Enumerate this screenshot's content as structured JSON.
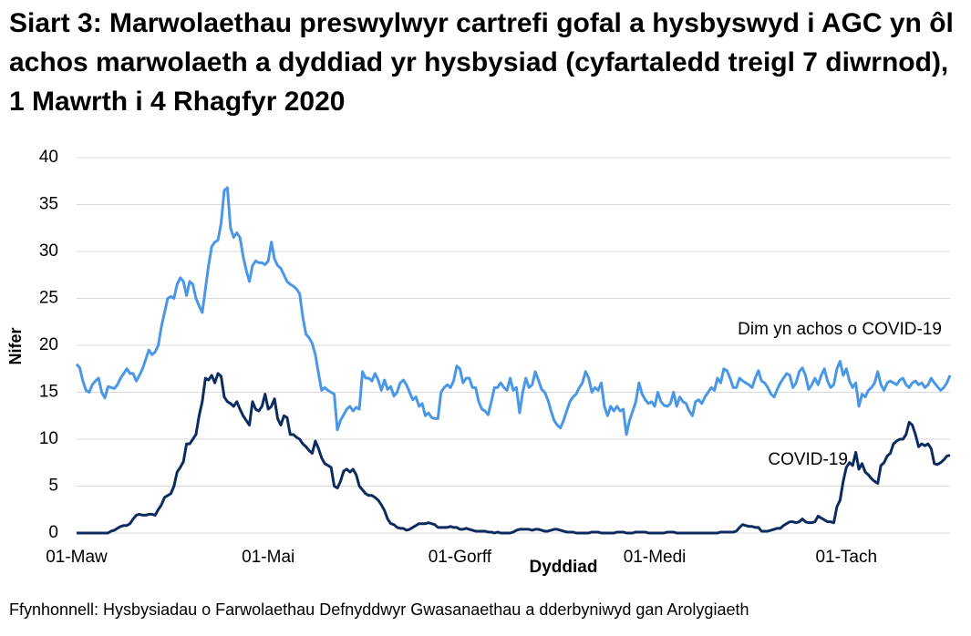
{
  "chart_data": {
    "type": "line",
    "title": "Siart 3: Marwolaethau preswylwyr cartrefi gofal a hysbyswyd i AGC yn ôl achos marwolaeth a dyddiad yr hysbysiad (cyfartaledd treigl 7 diwrnod), 1 Mawrth i 4 Rhagfyr 2020",
    "x_label": "Dyddiad",
    "y_label": "Nifer",
    "source": "Ffynhonnell: Hysbysiadau o Farwolaethau Defnyddwyr Gwasanaethau a dderbyniwyd gan Arolygiaeth",
    "categories": [
      "01-Maw",
      null,
      null,
      null,
      null,
      null,
      null,
      null,
      null,
      null,
      null,
      null,
      null,
      null,
      null,
      null,
      null,
      null,
      null,
      null,
      null,
      null,
      null,
      null,
      null,
      null,
      null,
      null,
      null,
      null,
      null,
      null,
      null,
      null,
      null,
      null,
      null,
      null,
      null,
      null,
      null,
      null,
      null,
      null,
      null,
      null,
      null,
      null,
      null,
      null,
      null,
      null,
      null,
      null,
      null,
      null,
      null,
      null,
      null,
      null,
      null,
      "01-Mai",
      null,
      null,
      null,
      null,
      null,
      null,
      null,
      null,
      null,
      null,
      null,
      null,
      null,
      null,
      null,
      null,
      null,
      null,
      null,
      null,
      null,
      null,
      null,
      null,
      null,
      null,
      null,
      null,
      null,
      null,
      null,
      null,
      null,
      null,
      null,
      null,
      null,
      null,
      null,
      null,
      null,
      null,
      null,
      null,
      null,
      null,
      null,
      null,
      null,
      null,
      null,
      null,
      null,
      null,
      null,
      null,
      null,
      null,
      null,
      null,
      "01-Gorff",
      null,
      null,
      null,
      null,
      null,
      null,
      null,
      null,
      null,
      null,
      null,
      null,
      null,
      null,
      null,
      null,
      null,
      null,
      null,
      null,
      null,
      null,
      null,
      null,
      null,
      null,
      null,
      null,
      null,
      null,
      null,
      null,
      null,
      null,
      null,
      null,
      null,
      null,
      null,
      null,
      null,
      null,
      null,
      null,
      null,
      null,
      null,
      null,
      null,
      null,
      null,
      null,
      null,
      null,
      null,
      null,
      null,
      null,
      null,
      null,
      null,
      "01-Medi",
      null,
      null,
      null,
      null,
      null,
      null,
      null,
      null,
      null,
      null,
      null,
      null,
      null,
      null,
      null,
      null,
      null,
      null,
      null,
      null,
      null,
      null,
      null,
      null,
      null,
      null,
      null,
      null,
      null,
      null,
      null,
      null,
      null,
      null,
      null,
      null,
      null,
      null,
      null,
      null,
      null,
      null,
      null,
      null,
      null,
      null,
      null,
      null,
      null,
      null,
      null,
      null,
      null,
      null,
      null,
      null,
      null,
      null,
      null,
      null,
      "01-Tach",
      null,
      null,
      null,
      null,
      null,
      null,
      null,
      null,
      null,
      null,
      null,
      null,
      null,
      null,
      null,
      null,
      null,
      null,
      null,
      null,
      null,
      null,
      null,
      null,
      null,
      null,
      null,
      null,
      null,
      null,
      null,
      null,
      null
    ],
    "series": [
      {
        "name": "Dim yn achos o COVID-19",
        "color": "#4a97e6",
        "values": [
          18,
          17.6,
          16.2,
          15.2,
          15,
          15.8,
          16.2,
          16.5,
          15,
          14.4,
          15.6,
          15.5,
          15.4,
          15.8,
          16.5,
          17,
          17.5,
          17,
          17,
          16.2,
          16.8,
          17.5,
          18.5,
          19.5,
          19,
          19.3,
          20,
          22,
          23.5,
          25,
          25.2,
          25,
          26.5,
          27.2,
          26.8,
          25.3,
          26.8,
          26.5,
          25,
          24.2,
          23.5,
          26,
          28.5,
          30.5,
          31,
          31.2,
          33,
          36.5,
          36.8,
          32.5,
          31.5,
          32,
          31.5,
          29.5,
          28,
          26.8,
          28.5,
          29,
          28.8,
          28.8,
          28.6,
          29,
          31,
          29.2,
          28.5,
          28.2,
          27.5,
          26.8,
          26.5,
          26.3,
          26,
          25.5,
          23,
          21.2,
          20.8,
          20.2,
          19,
          17,
          15.2,
          15.5,
          15.2,
          15,
          14.8,
          11,
          12,
          12.6,
          13.2,
          13.5,
          13,
          13.4,
          13.2,
          17.2,
          16.5,
          16.5,
          16.2,
          17,
          16.3,
          15.2,
          16.3,
          15.3,
          15.6,
          14.6,
          15,
          16,
          16.3,
          15.8,
          15,
          14.2,
          14.5,
          13.5,
          13.8,
          12.5,
          12.8,
          12.3,
          12.2,
          12.2,
          15,
          15.5,
          15.8,
          15.5,
          16.2,
          17.8,
          17.5,
          16,
          16.5,
          16.5,
          15.5,
          15.5,
          14,
          13.2,
          13,
          12.6,
          14,
          15.5,
          15.5,
          16,
          15.5,
          15.2,
          16.5,
          15.2,
          15.5,
          12.8,
          15,
          16.5,
          15.5,
          15.8,
          17.2,
          16.3,
          15.3,
          15,
          14.2,
          13,
          12,
          11.5,
          11.2,
          12,
          13,
          14,
          14.5,
          14.8,
          15.5,
          16,
          17.2,
          16.5,
          15,
          15.5,
          15.2,
          16,
          13.5,
          12.5,
          13.5,
          13,
          13.5,
          13,
          13.2,
          10.5,
          12,
          13,
          14,
          16,
          14.8,
          14.2,
          13.8,
          14,
          13.5,
          15,
          14,
          13.6,
          13.5,
          13.8,
          15,
          13.5,
          14.5,
          14,
          13.8,
          13,
          12.5,
          14,
          14.2,
          13.8,
          14.5,
          15,
          15.5,
          15.2,
          16.5,
          16,
          17.5,
          17.3,
          16.5,
          15.5,
          15.5,
          16.5,
          16.2,
          16,
          15.8,
          15.5,
          16.5,
          17.3,
          16.2,
          16,
          15.5,
          14.8,
          14.5,
          15.3,
          16,
          16.5,
          17,
          16.8,
          15.5,
          16,
          17.2,
          17.6,
          16.8,
          15.3,
          15.8,
          16.5,
          15.8,
          16.8,
          17.5,
          16.2,
          15.5,
          15.8,
          17.5,
          18.3,
          16.8,
          17.5,
          16.2,
          15.5,
          16,
          13.5,
          14.8,
          14.5,
          15.2,
          15.5,
          16,
          17.2,
          15.8,
          15.2,
          16,
          16.2,
          16,
          15.8,
          16.3,
          16.5,
          15.8,
          15.5,
          16,
          16.2,
          15.8,
          16,
          15.5,
          15.8,
          16.5,
          16,
          15.6,
          15.2,
          15.5,
          16,
          16.8
        ]
      },
      {
        "name": "COVID-19",
        "color": "#0c2c60",
        "values": [
          0,
          0,
          0,
          0,
          0,
          0,
          0,
          0,
          0,
          0,
          0,
          0.2,
          0.3,
          0.5,
          0.7,
          0.8,
          0.8,
          1,
          1.5,
          1.9,
          2,
          1.9,
          1.9,
          2,
          2,
          1.9,
          2.5,
          3,
          3.8,
          4,
          4.2,
          5,
          6.5,
          7,
          7.6,
          9.5,
          9.5,
          10,
          10.5,
          12.5,
          14,
          16.5,
          16.3,
          16.8,
          16,
          17,
          16.7,
          14.5,
          14,
          13.8,
          13.5,
          14,
          13.2,
          12.5,
          12,
          11.5,
          14,
          13.2,
          13,
          13.5,
          14.8,
          13.2,
          13.5,
          14.3,
          12.2,
          11.5,
          12.5,
          12.3,
          10.5,
          10.5,
          10.2,
          10,
          9.5,
          9.2,
          8.8,
          8.5,
          9.8,
          9,
          8,
          7.4,
          7.2,
          7,
          5,
          4.8,
          5.5,
          6.6,
          6.8,
          6.5,
          6.8,
          6.2,
          5,
          4.6,
          4.2,
          4,
          4,
          3.8,
          3.5,
          3,
          2.4,
          1.5,
          1,
          0.9,
          0.6,
          0.5,
          0.5,
          0.3,
          0.4,
          0.6,
          0.8,
          1,
          1,
          1,
          1.1,
          1,
          0.9,
          0.6,
          0.6,
          0.6,
          0.6,
          0.7,
          0.6,
          0.6,
          0.4,
          0.4,
          0.5,
          0.4,
          0.3,
          0.2,
          0.2,
          0.2,
          0.2,
          0.1,
          0.1,
          0,
          0.1,
          0,
          0,
          0,
          0,
          0.1,
          0.3,
          0.4,
          0.4,
          0.4,
          0.4,
          0.3,
          0.4,
          0.4,
          0.3,
          0.2,
          0.2,
          0.3,
          0.4,
          0.4,
          0.3,
          0.2,
          0.1,
          0.1,
          0.1,
          0,
          0,
          0,
          0,
          0,
          0.1,
          0.1,
          0.1,
          0,
          0,
          0,
          0,
          0,
          0.1,
          0.1,
          0.1,
          0,
          0,
          0,
          0.1,
          0.1,
          0.1,
          0.1,
          0,
          0,
          0,
          0,
          0,
          0,
          0.1,
          0.1,
          0.1,
          0,
          0,
          0,
          0,
          0,
          0,
          0,
          0,
          0,
          0,
          0,
          0,
          0,
          0,
          0.1,
          0.1,
          0.1,
          0.1,
          0.1,
          0.2,
          0.6,
          0.9,
          0.8,
          0.7,
          0.7,
          0.6,
          0.6,
          0.2,
          0.2,
          0.2,
          0.3,
          0.4,
          0.5,
          0.5,
          0.8,
          1,
          1.2,
          1.2,
          1.1,
          1.2,
          1.5,
          1.2,
          1.1,
          1.1,
          1.2,
          1.8,
          1.6,
          1.4,
          1.2,
          1.2,
          1.1,
          2.8,
          3.5,
          5.5,
          7,
          7.5,
          7.2,
          8.6,
          6.8,
          7.4,
          6.5,
          6.2,
          5.8,
          5.5,
          5.3,
          7.2,
          7.5,
          8.2,
          8.5,
          9.5,
          9.8,
          10,
          10,
          10.5,
          11.8,
          11.5,
          10.5,
          9.2,
          9.5,
          9.3,
          9.5,
          9,
          7.4,
          7.3,
          7.5,
          7.8,
          8.2,
          8.3
        ]
      }
    ],
    "ylim": [
      0,
      40
    ],
    "yticks": [
      0,
      5,
      10,
      15,
      20,
      25,
      30,
      35,
      40
    ],
    "grid": true
  }
}
